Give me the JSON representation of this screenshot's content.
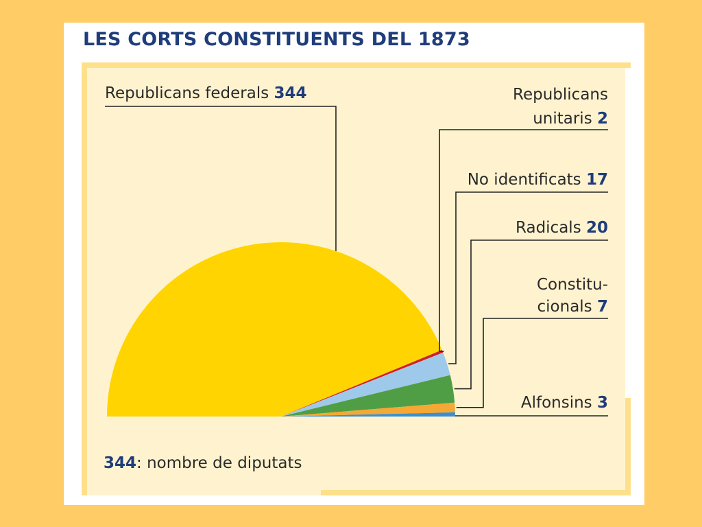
{
  "title": "LES CORTS CONSTITUENTS DEL 1873",
  "footnote": {
    "value": "344",
    "text": ": nombre de diputats"
  },
  "chart_data": {
    "type": "pie",
    "variant": "semicircle",
    "title": "LES CORTS CONSTITUENTS DEL 1873",
    "slices": [
      {
        "label_lines": [
          "Republicans federals"
        ],
        "value": 344,
        "value_text": "344",
        "color": "#ffd400"
      },
      {
        "label_lines": [
          "Republicans",
          "unitaris"
        ],
        "value": 2,
        "value_text": "2",
        "color": "#d0202a"
      },
      {
        "label_lines": [
          "No identificats"
        ],
        "value": 17,
        "value_text": "17",
        "color": "#9ec9ea"
      },
      {
        "label_lines": [
          "Radicals"
        ],
        "value": 20,
        "value_text": "20",
        "color": "#4f9e45"
      },
      {
        "label_lines": [
          "Constitu-",
          "cionals"
        ],
        "value": 7,
        "value_text": "7",
        "color": "#f5a833"
      },
      {
        "label_lines": [
          "Alfonsins"
        ],
        "value": 3,
        "value_text": "3",
        "color": "#3b8fd0"
      }
    ]
  }
}
